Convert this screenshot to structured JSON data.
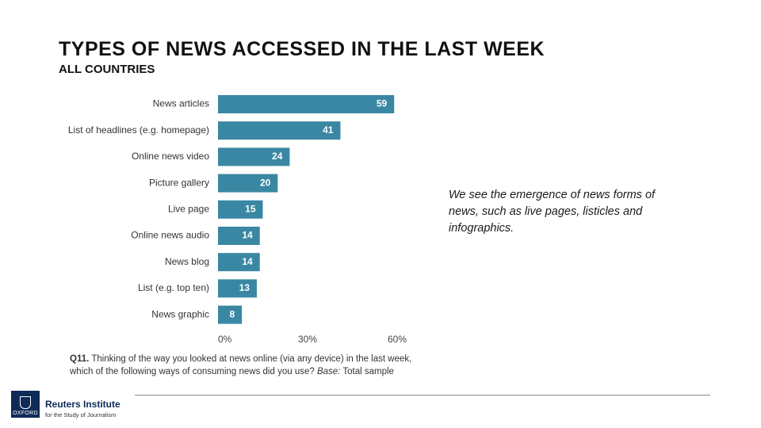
{
  "header": {
    "title": "TYPES OF NEWS ACCESSED IN THE LAST WEEK",
    "subtitle": "ALL COUNTRIES"
  },
  "chart_data": {
    "type": "bar",
    "orientation": "horizontal",
    "categories": [
      "News articles",
      "List of headlines (e.g. homepage)",
      "Online news video",
      "Picture gallery",
      "Live page",
      "Online news audio",
      "News blog",
      "List (e.g. top ten)",
      "News graphic"
    ],
    "values": [
      59,
      41,
      24,
      20,
      15,
      14,
      14,
      13,
      8
    ],
    "value_labels": [
      "59",
      "41",
      "24",
      "20",
      "15",
      "14",
      "14",
      "13",
      "8"
    ],
    "xlim": [
      0,
      60
    ],
    "xticks": [
      0,
      30,
      60
    ],
    "xtick_labels": [
      "0%",
      "30%",
      "60%"
    ],
    "bar_color": "#3a87a3",
    "grid": false
  },
  "question": {
    "number": "Q11.",
    "text": "Thinking of the way you looked at news online (via any device) in the last week, which of the following ways of consuming news did you use?",
    "base_label": "Base:",
    "base_text": "Total sample"
  },
  "commentary": "We see the emergence of news forms of news, such as live pages, listicles and infographics.",
  "footer": {
    "logo_text": "OXFORD",
    "org_name": "Reuters Institute",
    "org_tagline": "for the Study of Journalism"
  }
}
